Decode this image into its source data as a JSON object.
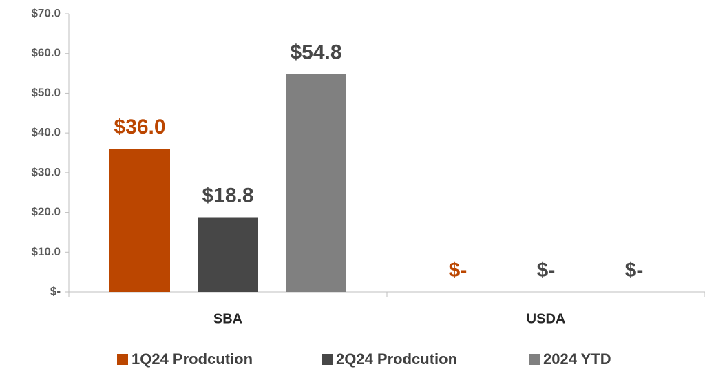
{
  "chart_data": {
    "type": "bar",
    "categories": [
      "SBA",
      "USDA"
    ],
    "series": [
      {
        "name": "1Q24 Prodcution",
        "color": "#bb4600",
        "label_color": "#bb4600",
        "values": [
          36.0,
          0
        ],
        "value_labels": [
          "$36.0",
          "$-"
        ]
      },
      {
        "name": "2Q24 Prodcution",
        "color": "#474747",
        "label_color": "#474747",
        "values": [
          18.8,
          0
        ],
        "value_labels": [
          "$18.8",
          "$-"
        ]
      },
      {
        "name": "2024 YTD",
        "color": "#808080",
        "label_color": "#474747",
        "values": [
          54.8,
          0
        ],
        "value_labels": [
          "$54.8",
          "$-"
        ]
      }
    ],
    "ylim": [
      0,
      70
    ],
    "yticks": [
      {
        "value": 0,
        "label": "$-"
      },
      {
        "value": 10,
        "label": "$10.0"
      },
      {
        "value": 20,
        "label": "$20.0"
      },
      {
        "value": 30,
        "label": "$30.0"
      },
      {
        "value": 40,
        "label": "$40.0"
      },
      {
        "value": 50,
        "label": "$50.0"
      },
      {
        "value": 60,
        "label": "$60.0"
      },
      {
        "value": 70,
        "label": "$70.0"
      }
    ],
    "grid": false,
    "legend": "bottom"
  }
}
